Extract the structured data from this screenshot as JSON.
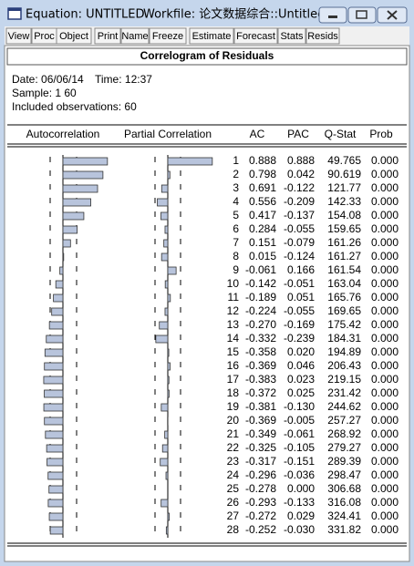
{
  "window": {
    "title": "Equation: UNTITLED",
    "workfile": "Workfile: 论文数据综合::Untitled\\"
  },
  "toolbar": [
    "View",
    "Proc",
    "Object",
    "Print",
    "Name",
    "Freeze",
    "Estimate",
    "Forecast",
    "Stats",
    "Resids"
  ],
  "header": {
    "title": "Correlogram of Residuals"
  },
  "info": {
    "date": "Date: 06/06/14",
    "time": "Time: 12:37",
    "sample": "Sample: 1 60",
    "observations": "Included observations: 60"
  },
  "table": {
    "columns": [
      "Autocorrelation",
      "Partial Correlation",
      "AC",
      "PAC",
      "Q-Stat",
      "Prob"
    ],
    "rows": [
      {
        "lag": 1,
        "ac": 0.888,
        "pac": 0.888,
        "q_stat": 49.765,
        "prob": "0.000"
      },
      {
        "lag": 2,
        "ac": 0.798,
        "pac": 0.042,
        "q_stat": 90.619,
        "prob": "0.000"
      },
      {
        "lag": 3,
        "ac": 0.691,
        "pac": -0.122,
        "q_stat": 121.77,
        "prob": "0.000"
      },
      {
        "lag": 4,
        "ac": 0.556,
        "pac": -0.209,
        "q_stat": 142.33,
        "prob": "0.000"
      },
      {
        "lag": 5,
        "ac": 0.417,
        "pac": -0.137,
        "q_stat": 154.08,
        "prob": "0.000"
      },
      {
        "lag": 6,
        "ac": 0.284,
        "pac": -0.055,
        "q_stat": 159.65,
        "prob": "0.000"
      },
      {
        "lag": 7,
        "ac": 0.151,
        "pac": -0.079,
        "q_stat": 161.26,
        "prob": "0.000"
      },
      {
        "lag": 8,
        "ac": 0.015,
        "pac": -0.124,
        "q_stat": 161.27,
        "prob": "0.000"
      },
      {
        "lag": 9,
        "ac": -0.061,
        "pac": 0.166,
        "q_stat": 161.54,
        "prob": "0.000"
      },
      {
        "lag": 10,
        "ac": -0.142,
        "pac": -0.051,
        "q_stat": 163.04,
        "prob": "0.000"
      },
      {
        "lag": 11,
        "ac": -0.189,
        "pac": 0.051,
        "q_stat": 165.76,
        "prob": "0.000"
      },
      {
        "lag": 12,
        "ac": -0.224,
        "pac": -0.055,
        "q_stat": 169.65,
        "prob": "0.000"
      },
      {
        "lag": 13,
        "ac": {
          "value": -0.27,
          "label": "-0.270"
        },
        "pac": -0.169,
        "q_stat": 175.42,
        "prob": "0.000"
      },
      {
        "lag": 14,
        "ac": -0.332,
        "pac": -0.239,
        "q_stat": 184.31,
        "prob": "0.000"
      },
      {
        "lag": 15,
        "ac": -0.358,
        "pac": {
          "value": 0.02,
          "label": "0.020"
        },
        "q_stat": 194.89,
        "prob": "0.000"
      },
      {
        "lag": 16,
        "ac": -0.369,
        "pac": 0.046,
        "q_stat": 206.43,
        "prob": "0.000"
      },
      {
        "lag": 17,
        "ac": -0.383,
        "pac": 0.023,
        "q_stat": 219.15,
        "prob": "0.000"
      },
      {
        "lag": 18,
        "ac": -0.372,
        "pac": 0.025,
        "q_stat": 231.42,
        "prob": "0.000"
      },
      {
        "lag": 19,
        "ac": -0.381,
        "pac": {
          "value": -0.13,
          "label": "-0.130"
        },
        "q_stat": 244.62,
        "prob": "0.000"
      },
      {
        "lag": 20,
        "ac": -0.369,
        "pac": -0.005,
        "q_stat": 257.27,
        "prob": "0.000"
      },
      {
        "lag": 21,
        "ac": -0.349,
        "pac": -0.061,
        "q_stat": 268.92,
        "prob": "0.000"
      },
      {
        "lag": 22,
        "ac": -0.325,
        "pac": -0.105,
        "q_stat": 279.27,
        "prob": "0.000"
      },
      {
        "lag": 23,
        "ac": -0.317,
        "pac": -0.151,
        "q_stat": 289.39,
        "prob": "0.000"
      },
      {
        "lag": 24,
        "ac": -0.296,
        "pac": -0.036,
        "q_stat": 298.47,
        "prob": "0.000"
      },
      {
        "lag": 25,
        "ac": -0.278,
        "pac": {
          "value": 0,
          "label": "0.000"
        },
        "q_stat": 306.68,
        "prob": "0.000"
      },
      {
        "lag": 26,
        "ac": -0.293,
        "pac": -0.133,
        "q_stat": 316.08,
        "prob": "0.000"
      },
      {
        "lag": 27,
        "ac": -0.272,
        "pac": 0.029,
        "q_stat": 324.41,
        "prob": "0.000"
      },
      {
        "lag": 28,
        "ac": -0.252,
        "pac": {
          "value": -0.03,
          "label": "-0.030"
        },
        "q_stat": 331.82,
        "prob": "0.000"
      }
    ]
  }
}
